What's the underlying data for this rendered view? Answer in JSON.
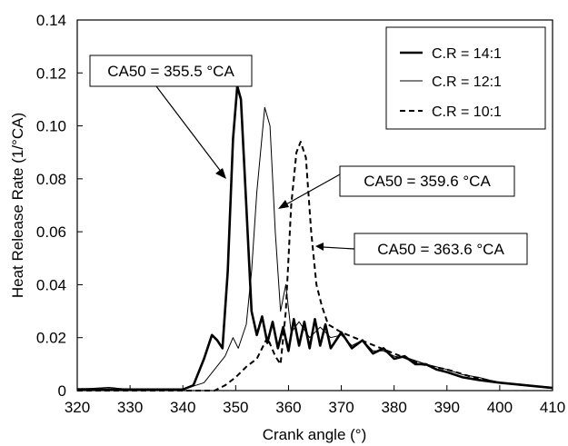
{
  "chart_data": {
    "type": "line",
    "xlabel": "Crank angle (°)",
    "ylabel": "Heat Release Rate (1/°CA)",
    "xlim": [
      320,
      410
    ],
    "ylim": [
      0,
      0.14
    ],
    "x_ticks": [
      "320",
      "330",
      "340",
      "350",
      "360",
      "370",
      "380",
      "390",
      "400",
      "410"
    ],
    "y_ticks": [
      "0",
      "0.02",
      "0.04",
      "0.06",
      "0.08",
      "0.10",
      "0.12",
      "0.14"
    ],
    "grid": false,
    "legend_position": "top-right",
    "series": [
      {
        "name": "C.R = 14:1",
        "style": "thick-solid",
        "points": [
          [
            320,
            0.0005
          ],
          [
            330,
            0.0004
          ],
          [
            340,
            0.0004
          ],
          [
            342,
            0.002
          ],
          [
            344,
            0.012
          ],
          [
            345.5,
            0.021
          ],
          [
            346.5,
            0.019
          ],
          [
            347.5,
            0.016
          ],
          [
            348.5,
            0.045
          ],
          [
            349.5,
            0.095
          ],
          [
            350.3,
            0.115
          ],
          [
            351,
            0.11
          ],
          [
            352,
            0.07
          ],
          [
            353,
            0.03
          ],
          [
            354,
            0.021
          ],
          [
            355,
            0.028
          ],
          [
            356,
            0.018
          ],
          [
            357,
            0.026
          ],
          [
            358,
            0.016
          ],
          [
            359,
            0.024
          ],
          [
            360,
            0.015
          ],
          [
            361,
            0.027
          ],
          [
            362,
            0.017
          ],
          [
            363,
            0.026
          ],
          [
            364,
            0.016
          ],
          [
            365,
            0.027
          ],
          [
            366,
            0.017
          ],
          [
            367,
            0.025
          ],
          [
            368,
            0.016
          ],
          [
            370,
            0.022
          ],
          [
            372,
            0.016
          ],
          [
            374,
            0.019
          ],
          [
            376,
            0.014
          ],
          [
            378,
            0.016
          ],
          [
            380,
            0.012
          ],
          [
            382,
            0.013
          ],
          [
            384,
            0.01
          ],
          [
            386,
            0.01
          ],
          [
            388,
            0.008
          ],
          [
            390,
            0.007
          ],
          [
            393,
            0.005
          ],
          [
            396,
            0.004
          ],
          [
            400,
            0.003
          ],
          [
            405,
            0.002
          ],
          [
            410,
            0.001
          ]
        ]
      },
      {
        "name": "C.R = 12:1",
        "style": "thin-solid",
        "points": [
          [
            320,
            0.0005
          ],
          [
            326,
            0.0012
          ],
          [
            330,
            0.0004
          ],
          [
            340,
            0.0004
          ],
          [
            344,
            0.003
          ],
          [
            346,
            0.008
          ],
          [
            348,
            0.013
          ],
          [
            349.5,
            0.02
          ],
          [
            350.5,
            0.016
          ],
          [
            352,
            0.025
          ],
          [
            353,
            0.045
          ],
          [
            354,
            0.075
          ],
          [
            355.5,
            0.107
          ],
          [
            356.5,
            0.1
          ],
          [
            357.5,
            0.06
          ],
          [
            358.5,
            0.03
          ],
          [
            359.5,
            0.04
          ],
          [
            360.5,
            0.022
          ],
          [
            362,
            0.026
          ],
          [
            364,
            0.02
          ],
          [
            366,
            0.024
          ],
          [
            368,
            0.02
          ],
          [
            370,
            0.021
          ],
          [
            372,
            0.017
          ],
          [
            374,
            0.019
          ],
          [
            376,
            0.015
          ],
          [
            378,
            0.015
          ],
          [
            380,
            0.013
          ],
          [
            383,
            0.012
          ],
          [
            386,
            0.01
          ],
          [
            390,
            0.008
          ],
          [
            393,
            0.006
          ],
          [
            396,
            0.005
          ],
          [
            400,
            0.003
          ],
          [
            405,
            0.002
          ],
          [
            410,
            0.001
          ]
        ]
      },
      {
        "name": "C.R = 10:1",
        "style": "dashed",
        "points": [
          [
            320,
            0
          ],
          [
            346,
            0
          ],
          [
            348,
            0.002
          ],
          [
            350,
            0.005
          ],
          [
            352,
            0.009
          ],
          [
            354,
            0.012
          ],
          [
            356,
            0.02
          ],
          [
            357.5,
            0.013
          ],
          [
            358.5,
            0.01
          ],
          [
            359.5,
            0.03
          ],
          [
            360.5,
            0.07
          ],
          [
            361.5,
            0.09
          ],
          [
            362.3,
            0.094
          ],
          [
            363.3,
            0.088
          ],
          [
            364.3,
            0.06
          ],
          [
            365.3,
            0.04
          ],
          [
            366.3,
            0.032
          ],
          [
            367.5,
            0.025
          ],
          [
            370,
            0.022
          ],
          [
            375,
            0.018
          ],
          [
            380,
            0.014
          ],
          [
            385,
            0.01
          ],
          [
            390,
            0.008
          ],
          [
            395,
            0.005
          ],
          [
            400,
            0.003
          ],
          [
            405,
            0.002
          ],
          [
            410,
            0.001
          ]
        ]
      }
    ],
    "annotations": [
      {
        "text": "CA50 = 355.5 °CA",
        "target": [
          349.5,
          0.085
        ]
      },
      {
        "text": "CA50 = 359.6 °CA",
        "target": [
          356.5,
          0.07
        ]
      },
      {
        "text": "CA50 = 363.6 °CA",
        "target": [
          364.5,
          0.052
        ]
      }
    ]
  }
}
